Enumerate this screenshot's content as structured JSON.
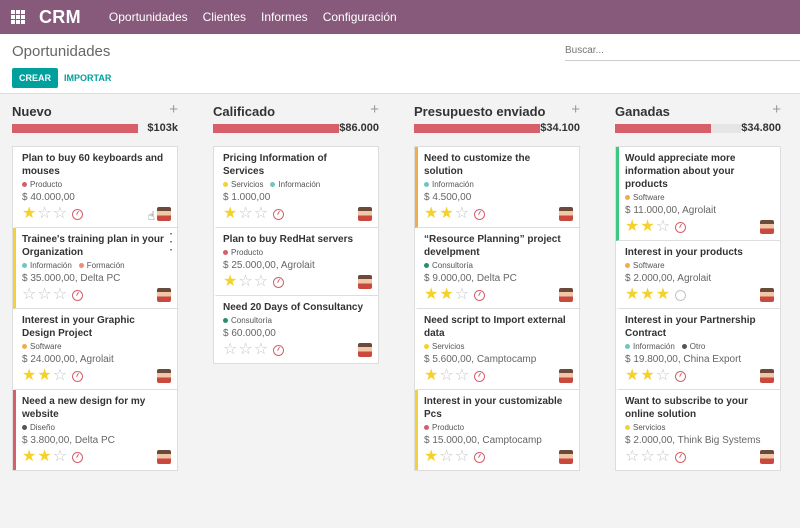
{
  "app": {
    "title": "CRM",
    "menu": [
      "Oportunidades",
      "Clientes",
      "Informes",
      "Configuración"
    ]
  },
  "control": {
    "title": "Oportunidades",
    "search_placeholder": "Buscar...",
    "create_label": "CREAR",
    "import_label": "IMPORTAR"
  },
  "colors": {
    "Producto": "#d65f6a",
    "Servicios": "#f0d23a",
    "Información": "#6fc5c6",
    "Formación": "#f28a7a",
    "Software": "#f0ad4e",
    "Diseño": "#555555",
    "Consultoría": "#2c8d68",
    "Otro": "#555555"
  },
  "columns": [
    {
      "title": "Nuevo",
      "total": "$103k",
      "fill": 1.0,
      "cards": [
        {
          "title": "Plan to buy 60 keyboards and mouses",
          "tags": [
            "Producto"
          ],
          "amount": "$ 40.000,00",
          "stars": 1,
          "activity": true,
          "border": "",
          "cursor": true
        },
        {
          "title": "Trainee's training plan in your Organization",
          "tags": [
            "Información",
            "Formación"
          ],
          "amount": "$ 35.000,00, Delta PC",
          "stars": 0,
          "activity": true,
          "border": "yellow",
          "menu": true
        },
        {
          "title": "Interest in your Graphic Design Project",
          "tags": [
            "Software"
          ],
          "amount": "$ 24.000,00, Agrolait",
          "stars": 2,
          "activity": true,
          "border": ""
        },
        {
          "title": "Need a new design for my website",
          "tags": [
            "Diseño"
          ],
          "amount": "$ 3.800,00, Delta PC",
          "stars": 2,
          "activity": true,
          "border": "red"
        }
      ]
    },
    {
      "title": "Calificado",
      "total": "$86.000",
      "fill": 1.0,
      "cards": [
        {
          "title": "Pricing Information of Services",
          "tags": [
            "Servicios",
            "Información"
          ],
          "amount": "$ 1.000,00",
          "stars": 1,
          "activity": true,
          "border": ""
        },
        {
          "title": "Plan to buy RedHat servers",
          "tags": [
            "Producto"
          ],
          "amount": "$ 25.000,00, Agrolait",
          "stars": 1,
          "activity": true,
          "border": ""
        },
        {
          "title": "Need 20 Days of Consultancy",
          "tags": [
            "Consultoría"
          ],
          "amount": "$ 60.000,00",
          "stars": 0,
          "activity": true,
          "border": ""
        }
      ]
    },
    {
      "title": "Presupuesto enviado",
      "total": "$34.100",
      "fill": 1.0,
      "cards": [
        {
          "title": "Need to customize the solution",
          "tags": [
            "Información"
          ],
          "amount": "$ 4.500,00",
          "stars": 2,
          "activity": true,
          "border": "orange"
        },
        {
          "title": "“Resource Planning” project develpment",
          "tags": [
            "Consultoría"
          ],
          "amount": "$ 9.000,00, Delta PC",
          "stars": 2,
          "activity": true,
          "border": ""
        },
        {
          "title": "Need script to Import external data",
          "tags": [
            "Servicios"
          ],
          "amount": "$ 5.600,00, Camptocamp",
          "stars": 1,
          "activity": true,
          "border": ""
        },
        {
          "title": "Interest in your customizable Pcs",
          "tags": [
            "Producto"
          ],
          "amount": "$ 15.000,00, Camptocamp",
          "stars": 1,
          "activity": true,
          "border": "yellow"
        }
      ]
    },
    {
      "title": "Ganadas",
      "total": "$34.800",
      "fill": 0.76,
      "cards": [
        {
          "title": "Would appreciate more information about your products",
          "tags": [
            "Software"
          ],
          "amount": "$ 11.000,00, Agrolait",
          "stars": 2,
          "activity": true,
          "border": "green"
        },
        {
          "title": "Interest in your products",
          "tags": [
            "Software"
          ],
          "amount": "$ 2.000,00, Agrolait",
          "stars": 3,
          "activity": false,
          "border": ""
        },
        {
          "title": "Interest in your Partnership Contract",
          "tags": [
            "Información",
            "Otro"
          ],
          "amount": "$ 19.800,00, China Export",
          "stars": 2,
          "activity": true,
          "border": ""
        },
        {
          "title": "Want to subscribe to your online solution",
          "tags": [
            "Servicios"
          ],
          "amount": "$ 2.000,00, Think Big Systems",
          "stars": 0,
          "activity": true,
          "border": ""
        }
      ]
    }
  ]
}
